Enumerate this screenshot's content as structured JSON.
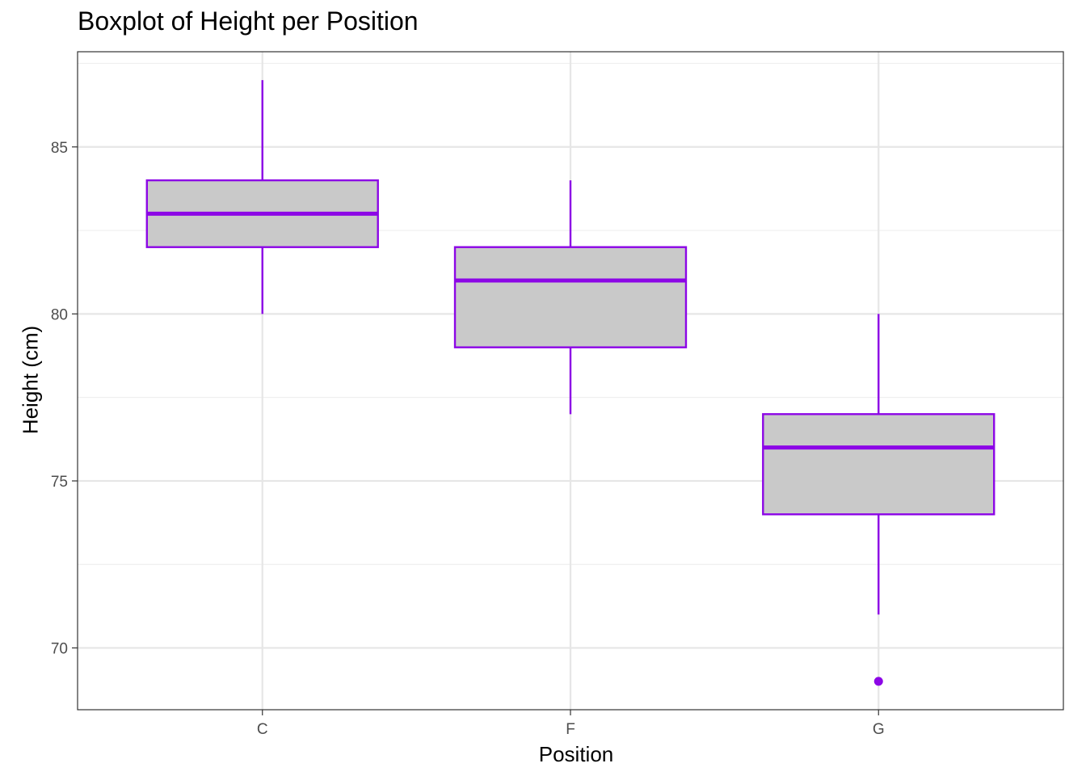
{
  "chart_data": {
    "type": "boxplot",
    "title": "Boxplot of Height per Position",
    "xlabel": "Position",
    "ylabel": "Height (cm)",
    "categories": [
      "C",
      "F",
      "G"
    ],
    "ylim": [
      68.15,
      87.85
    ],
    "y_ticks": [
      70,
      75,
      80,
      85
    ],
    "y_tick_labels": [
      "70",
      "75",
      "80",
      "85"
    ],
    "grid": true,
    "boxes": [
      {
        "category": "C",
        "min": 80,
        "q1": 82,
        "median": 83,
        "q3": 84,
        "max": 87,
        "outliers": []
      },
      {
        "category": "F",
        "min": 77,
        "q1": 79,
        "median": 81,
        "q3": 82,
        "max": 84,
        "outliers": []
      },
      {
        "category": "G",
        "min": 71,
        "q1": 74,
        "median": 76,
        "q3": 77,
        "max": 80,
        "outliers": [
          69
        ]
      }
    ],
    "colors": {
      "box_fill": "#c9c9c9",
      "box_stroke": "#8c06e6",
      "grid_major": "#e6e6e6",
      "grid_minor": "#efefef",
      "panel_border": "#333333",
      "tick_text": "#4d4d4d"
    }
  }
}
